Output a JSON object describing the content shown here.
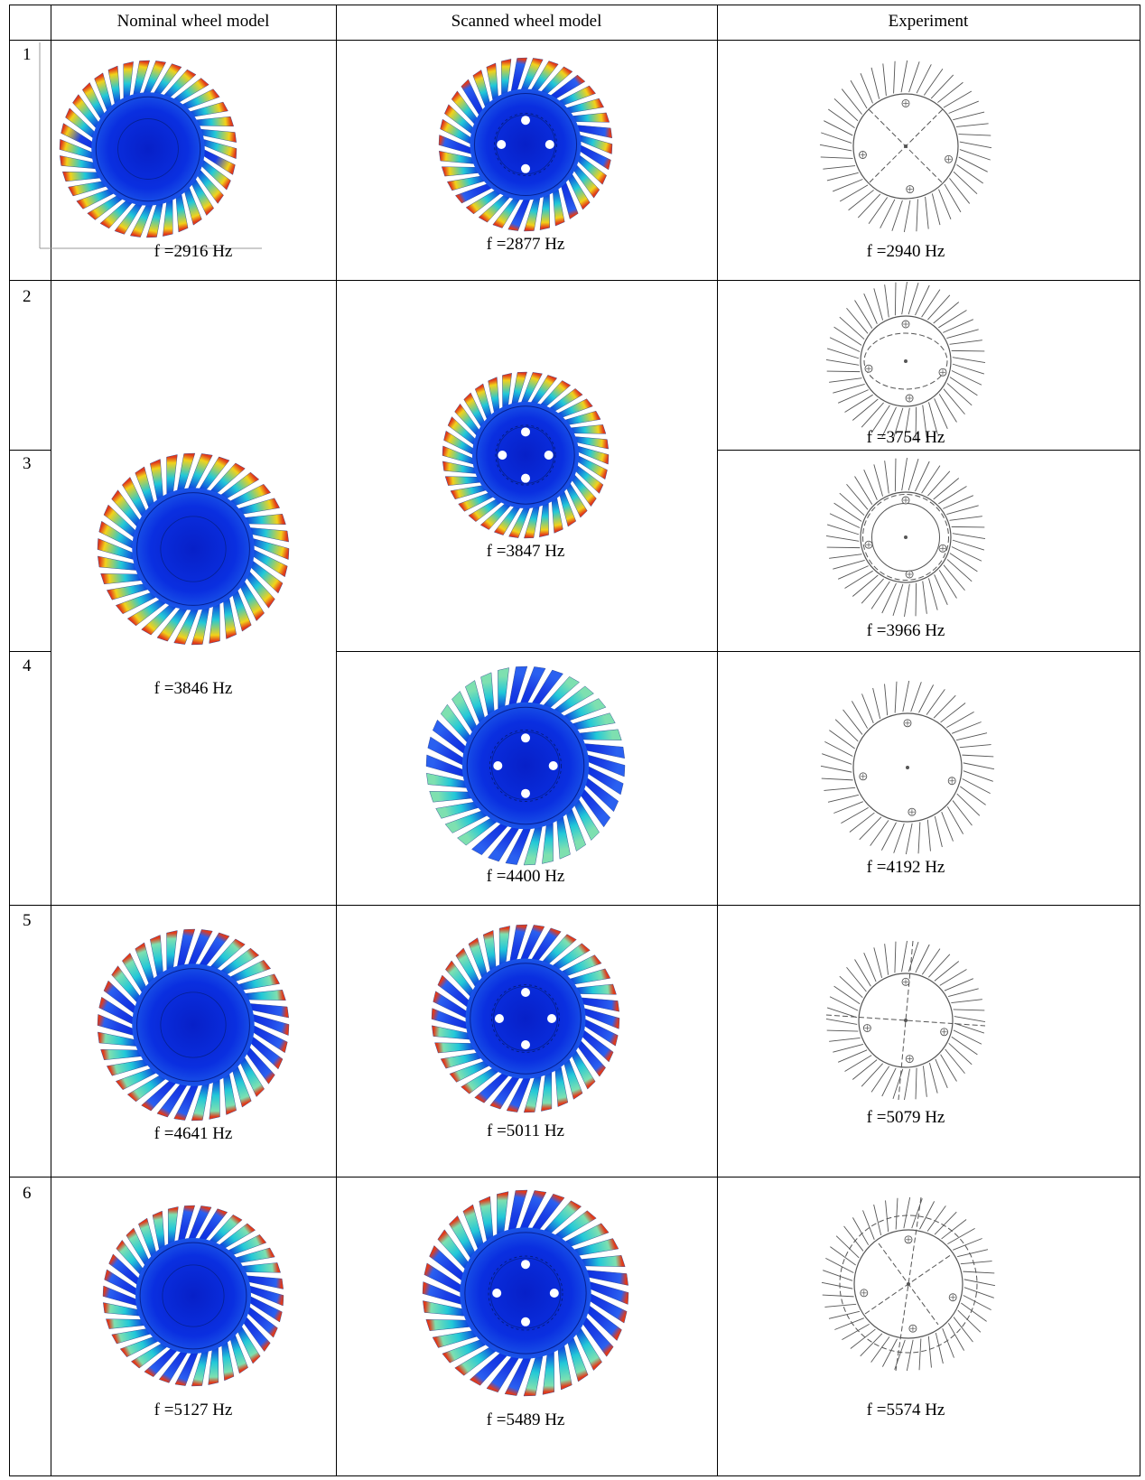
{
  "table": {
    "headers": [
      "Nominal wheel model",
      "Scanned wheel model",
      "Experiment"
    ],
    "row_numbers": [
      "1",
      "2",
      "3",
      "4",
      "5",
      "6"
    ],
    "nominal_freqs": [
      "f =2916  Hz",
      "f =3846  Hz",
      "f =4641  Hz",
      "f =5127  Hz"
    ],
    "scanned_freqs": [
      "f =2877  Hz",
      "f =3847  Hz",
      "f =4400  Hz",
      "f =5011  Hz",
      "f =5489  Hz"
    ],
    "experiment_freqs": [
      "f =2940  Hz",
      "f =3754  Hz",
      "f =3966  Hz",
      "f =4192  Hz",
      "f =5079  Hz",
      "f =5574  Hz"
    ]
  },
  "colors": {
    "fea_base": "#0a2fe0",
    "fea_mid": "#22c8d8",
    "fea_high": "#f2d21a",
    "fea_peak": "#e23a1a",
    "drawing_line": "#555555"
  }
}
